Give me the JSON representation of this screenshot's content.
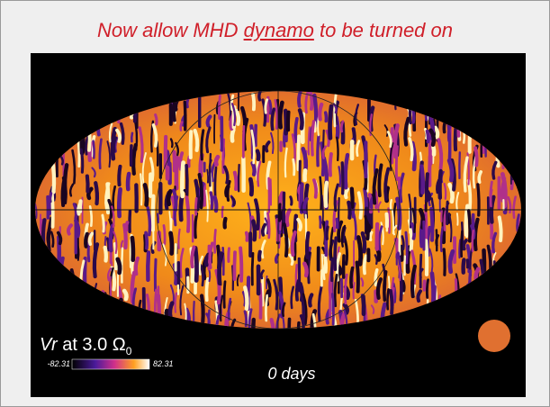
{
  "slide": {
    "title": {
      "before": "Now allow MHD ",
      "link": "dynamo",
      "after": " to be turned on"
    },
    "figure": {
      "label": {
        "variable": "Vr",
        "text": " at 3.0 Ω",
        "subscript": "0"
      },
      "colorbar": {
        "min": -82.31,
        "max": 82.31
      },
      "time": "0 days"
    }
  }
}
